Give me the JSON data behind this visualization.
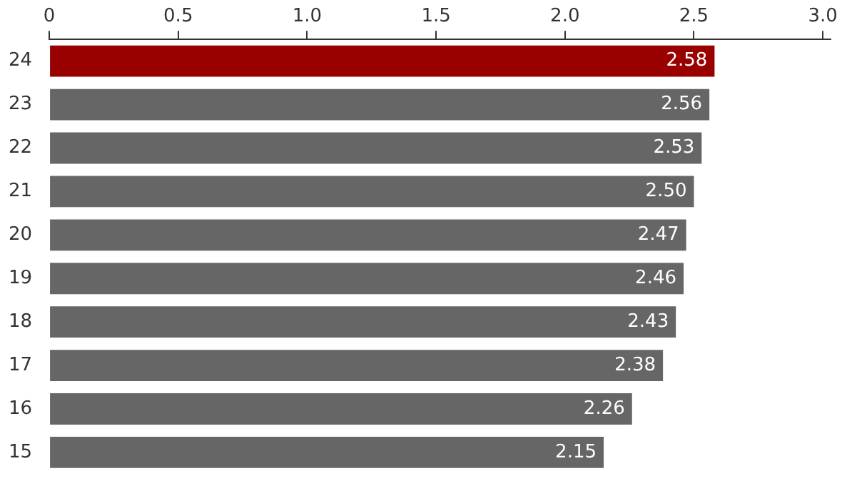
{
  "chart_data": {
    "type": "bar",
    "orientation": "horizontal",
    "categories": [
      "24",
      "23",
      "22",
      "21",
      "20",
      "19",
      "18",
      "17",
      "16",
      "15"
    ],
    "values": [
      2.58,
      2.56,
      2.53,
      2.5,
      2.47,
      2.46,
      2.43,
      2.38,
      2.26,
      2.15
    ],
    "colors": [
      "#990000",
      "#666666",
      "#666666",
      "#666666",
      "#666666",
      "#666666",
      "#666666",
      "#666666",
      "#666666",
      "#666666"
    ],
    "value_labels": [
      "2.58",
      "2.56",
      "2.53",
      "2.50",
      "2.47",
      "2.46",
      "2.43",
      "2.38",
      "2.26",
      "2.15"
    ],
    "xlim": [
      0,
      3.03
    ],
    "xticks": [
      0,
      0.5,
      {
        "value": 1,
        "label": "1.0"
      },
      1.5,
      {
        "value": 2,
        "label": "2.0"
      },
      2.5,
      {
        "value": 3,
        "label": "3.0"
      }
    ],
    "grid": false,
    "legend": false
  }
}
